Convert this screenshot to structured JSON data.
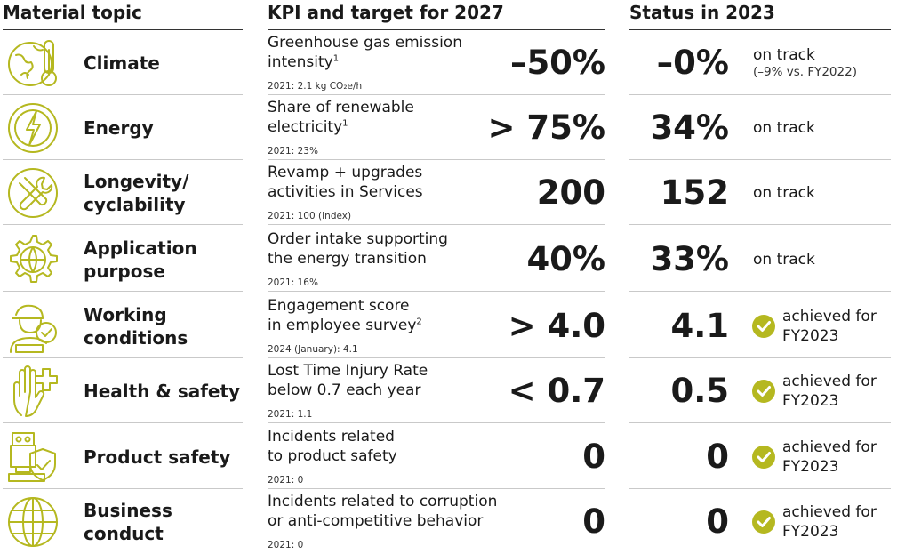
{
  "headers": {
    "material_topic": "Material topic",
    "kpi": "KPI and target for 2027",
    "status": "Status in 2023"
  },
  "colors": {
    "accent": "#b5b820"
  },
  "rows": [
    {
      "icon": "climate-globe-thermometer-icon",
      "topic": "Climate",
      "kpi_lines": [
        "Greenhouse gas emission",
        "intensity"
      ],
      "footnote": "1",
      "baseline": "2021: 2.1 kg CO₂e/h",
      "target": "–50%",
      "status_value": "–0%",
      "status_text": "on track",
      "status_sub": "(–9% vs. FY2022)"
    },
    {
      "icon": "energy-lightning-icon",
      "topic": "Energy",
      "kpi_lines": [
        "Share of renewable",
        "electricity"
      ],
      "footnote": "1",
      "baseline": "2021: 23%",
      "target": "> 75%",
      "status_value": "34%",
      "status_text": "on track"
    },
    {
      "icon": "tools-wrench-screwdriver-icon",
      "topic_lines": [
        "Longevity/",
        "cyclability"
      ],
      "kpi_lines": [
        "Revamp + upgrades",
        "activities in Services"
      ],
      "baseline": "2021: 100 (Index)",
      "target": "200",
      "status_value": "152",
      "status_text": "on track"
    },
    {
      "icon": "gear-globe-icon",
      "topic_lines": [
        "Application",
        "purpose"
      ],
      "kpi_lines": [
        "Order intake supporting",
        "the energy transition"
      ],
      "baseline": "2021: 16%",
      "target": "40%",
      "status_value": "33%",
      "status_text": "on track"
    },
    {
      "icon": "worker-check-icon",
      "topic_lines": [
        "Working",
        "conditions"
      ],
      "kpi_lines": [
        "Engagement score",
        "in employee survey"
      ],
      "footnote": "2",
      "baseline": "2024 (January): 4.1",
      "target": "> 4.0",
      "status_value": "4.1",
      "achieved": "achieved for FY2023"
    },
    {
      "icon": "hand-cross-icon",
      "topic": "Health & safety",
      "kpi_lines": [
        "Lost Time Injury Rate",
        "below 0.7 each year"
      ],
      "baseline": "2021: 1.1",
      "target": "< 0.7",
      "status_value": "0.5",
      "achieved": "achieved for FY2023"
    },
    {
      "icon": "machine-shield-icon",
      "topic": "Product safety",
      "kpi_lines": [
        "Incidents related",
        "to product safety"
      ],
      "baseline": "2021: 0",
      "target": "0",
      "status_value": "0",
      "achieved": "achieved for FY2023"
    },
    {
      "icon": "globe-grid-icon",
      "topic_lines": [
        "Business",
        "conduct"
      ],
      "kpi_lines": [
        "Incidents related to corruption",
        "or anti-competitive behavior"
      ],
      "baseline": "2021: 0",
      "target": "0",
      "status_value": "0",
      "achieved": "achieved for FY2023"
    }
  ]
}
